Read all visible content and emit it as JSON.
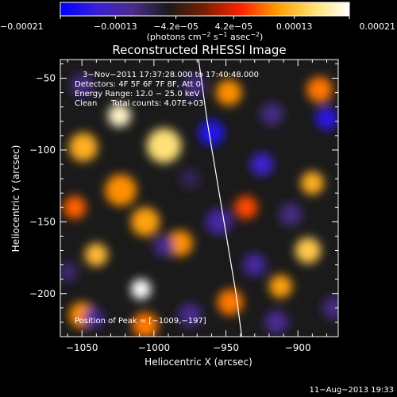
{
  "chart_data": {
    "type": "heatmap",
    "title": "Reconstructed RHESSI Image",
    "xlabel": "Heliocentric X (arcsec)",
    "ylabel": "Heliocentric Y (arcsec)",
    "xlim": [
      -1065,
      -872
    ],
    "ylim": [
      -230,
      -37
    ],
    "x_ticks": [
      -1050,
      -1000,
      -950,
      -900
    ],
    "x_tick_labels": [
      "−1050",
      "−1000",
      "−950",
      "−900"
    ],
    "y_ticks": [
      -50,
      -100,
      -150,
      -200
    ],
    "y_tick_labels": [
      "−50",
      "−100",
      "−150",
      "−200"
    ],
    "colorbar": {
      "min": -0.00021,
      "max": 0.00021,
      "ticks": [
        -0.00021,
        -0.00013,
        -4.2e-05,
        4.2e-05,
        0.00013,
        0.00021
      ],
      "tick_labels": [
        "−0.00021",
        "−0.00013",
        "−4.2e−05",
        "4.2e−05",
        "0.00013",
        "0.00021"
      ],
      "units_prefix": "(photons cm",
      "units_exp1": "−2",
      "units_mid": " s",
      "units_exp2": "−1",
      "units_mid2": " asec",
      "units_exp3": "−2",
      "units_suffix": ")",
      "colors": [
        "#0000ff",
        "#3a1fd8",
        "#4a2c8a",
        "#1a1a1a",
        "#7a1f00",
        "#ff2200",
        "#ff9a00",
        "#ffe070",
        "#ffffff"
      ]
    },
    "annotations": {
      "time_range": "3−Nov−2011 17:37:28.000 to 17:40:48.000",
      "detectors": "Detectors: 4F 5F 6F 7F 8F, Att 0",
      "energy_range": "Energy Range: 12.0 − 25.0 keV",
      "algorithm": "Clean",
      "total_counts": "Total counts: 4.07E+03",
      "peak_position": "Position of Peak = [−1009,−197]"
    },
    "limb_curve": [
      [
        -969,
        -37
      ],
      [
        -963,
        -80
      ],
      [
        -958,
        -110
      ],
      [
        -953,
        -140
      ],
      [
        -948,
        -170
      ],
      [
        -943,
        -200
      ],
      [
        -939,
        -230
      ]
    ],
    "sources": [
      {
        "x": -1009,
        "y": -197,
        "value": 0.00021,
        "size": 7
      },
      {
        "x": -1024,
        "y": -76,
        "value": 0.00019,
        "size": 8
      },
      {
        "x": -993,
        "y": -97,
        "value": 0.00016,
        "size": 12
      },
      {
        "x": -1049,
        "y": -98,
        "value": 0.00012,
        "size": 10
      },
      {
        "x": -1040,
        "y": -173,
        "value": 0.00013,
        "size": 8
      },
      {
        "x": -1006,
        "y": -150,
        "value": 0.00011,
        "size": 10
      },
      {
        "x": -982,
        "y": -165,
        "value": 0.0001,
        "size": 9
      },
      {
        "x": -1023,
        "y": -128,
        "value": 0.0001,
        "size": 11
      },
      {
        "x": -1050,
        "y": -215,
        "value": 0.0001,
        "size": 9
      },
      {
        "x": -1006,
        "y": -222,
        "value": 9e-05,
        "size": 9
      },
      {
        "x": -893,
        "y": -170,
        "value": 0.00014,
        "size": 9
      },
      {
        "x": -890,
        "y": -123,
        "value": 0.00012,
        "size": 8
      },
      {
        "x": -912,
        "y": -195,
        "value": 0.00011,
        "size": 8
      },
      {
        "x": -947,
        "y": -206,
        "value": 9e-05,
        "size": 9
      },
      {
        "x": -948,
        "y": -60,
        "value": 0.0001,
        "size": 9
      },
      {
        "x": -885,
        "y": -58,
        "value": 9e-05,
        "size": 9
      },
      {
        "x": -1055,
        "y": -140,
        "value": 8e-05,
        "size": 8
      },
      {
        "x": -936,
        "y": -140,
        "value": 7e-05,
        "size": 8
      },
      {
        "x": -960,
        "y": -88,
        "value": -0.00018,
        "size": 9
      },
      {
        "x": -925,
        "y": -110,
        "value": -0.00015,
        "size": 8
      },
      {
        "x": -880,
        "y": -78,
        "value": -0.00017,
        "size": 8
      },
      {
        "x": -1042,
        "y": -217,
        "value": -0.00012,
        "size": 7
      },
      {
        "x": -993,
        "y": -167,
        "value": -0.00011,
        "size": 7
      },
      {
        "x": -955,
        "y": -150,
        "value": -0.00012,
        "size": 9
      },
      {
        "x": -930,
        "y": -180,
        "value": -0.00012,
        "size": 8
      },
      {
        "x": -905,
        "y": -145,
        "value": -0.0001,
        "size": 8
      },
      {
        "x": -975,
        "y": -215,
        "value": -0.00011,
        "size": 8
      },
      {
        "x": -1050,
        "y": -55,
        "value": -0.0001,
        "size": 8
      },
      {
        "x": -972,
        "y": -55,
        "value": -0.0001,
        "size": 8
      },
      {
        "x": -915,
        "y": -220,
        "value": -0.00011,
        "size": 8
      },
      {
        "x": -875,
        "y": -210,
        "value": -0.0001,
        "size": 8
      },
      {
        "x": -918,
        "y": -75,
        "value": -0.0001,
        "size": 8
      },
      {
        "x": -1060,
        "y": -185,
        "value": -9e-05,
        "size": 7
      },
      {
        "x": -975,
        "y": -120,
        "value": -8e-05,
        "size": 7
      }
    ]
  },
  "footer": {
    "timestamp": "11−Aug−2013 19:33"
  }
}
